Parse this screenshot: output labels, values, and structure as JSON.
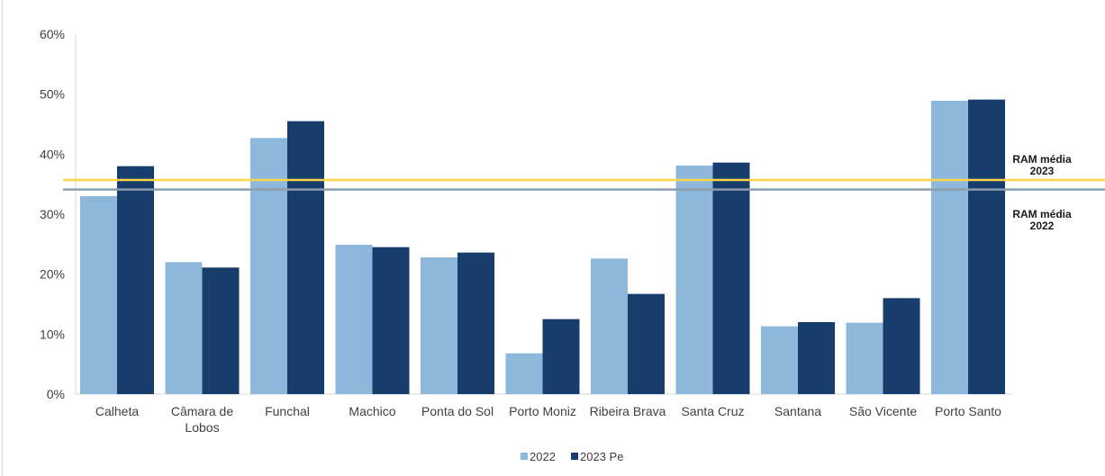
{
  "chart_data": {
    "type": "bar",
    "categories": [
      [
        "Calheta"
      ],
      [
        "Câmara de",
        "Lobos"
      ],
      [
        "Funchal"
      ],
      [
        "Machico"
      ],
      [
        "Ponta do Sol"
      ],
      [
        "Porto Moniz"
      ],
      [
        "Ribeira Brava"
      ],
      [
        "Santa Cruz"
      ],
      [
        "Santana"
      ],
      [
        "São Vicente"
      ],
      [
        "Porto Santo"
      ]
    ],
    "series": [
      {
        "name": "2022",
        "color": "#8db8dc",
        "values": [
          0.33,
          0.22,
          0.427,
          0.249,
          0.228,
          0.068,
          0.226,
          0.381,
          0.113,
          0.119,
          0.489
        ]
      },
      {
        "name": "2023 Pe",
        "color": "#163d6b",
        "values": [
          0.38,
          0.211,
          0.455,
          0.245,
          0.236,
          0.125,
          0.167,
          0.386,
          0.12,
          0.16,
          0.491
        ]
      }
    ],
    "ylim": [
      0,
      0.6
    ],
    "yticks": [
      "0%",
      "10%",
      "20%",
      "30%",
      "40%",
      "50%",
      "60%"
    ],
    "reference_lines": [
      {
        "label_lines": [
          "RAM média",
          "2023"
        ],
        "value": 0.357,
        "color": "#ffd447"
      },
      {
        "label_lines": [
          "RAM média",
          "2022"
        ],
        "value": 0.341,
        "color": "#8c9db0"
      }
    ],
    "legend_position": "bottom-center",
    "grid": false
  }
}
